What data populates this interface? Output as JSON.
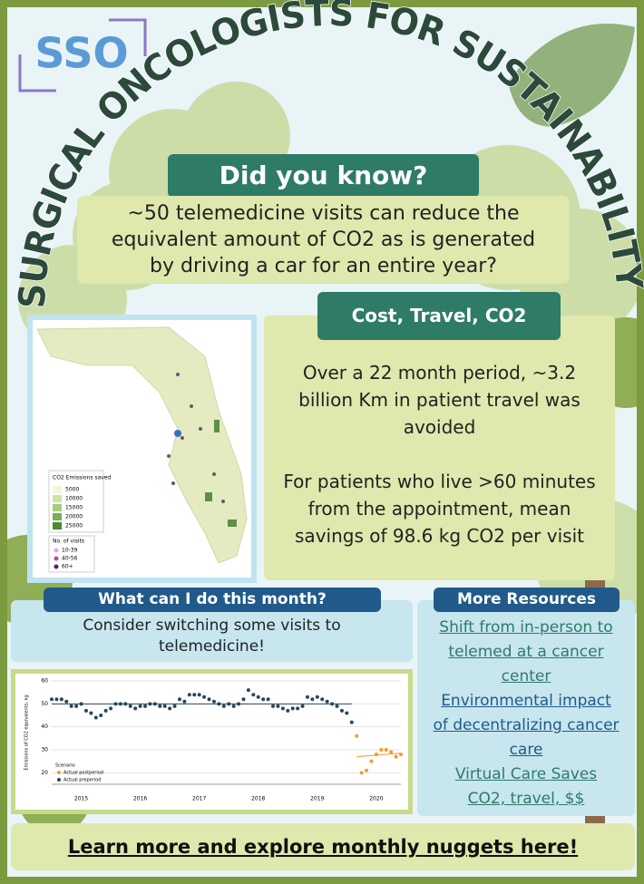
{
  "logo": "SSO",
  "title": "SURGICAL ONCOLOGISTS FOR SUSTAINABILITY",
  "did_you_know": {
    "heading": "Did you know?",
    "lines": [
      "~50 telemedicine visits can reduce the",
      "equivalent amount of CO2 as is generated",
      "by driving a car for an entire year?"
    ]
  },
  "map": {
    "legend_title": "CO2 Emissions saved",
    "scale": [
      5000,
      10000,
      15000,
      20000,
      25000
    ],
    "visits_title": "No. of visits",
    "visits": [
      "10-39",
      "40-56",
      "60+"
    ]
  },
  "cost_travel": {
    "heading": "Cost, Travel, CO2",
    "paragraphs": [
      [
        "Over a 22 month period, ~3.2",
        "billion Km in patient travel was",
        "avoided"
      ],
      [
        "For patients who live >60 minutes",
        "from the appointment, mean",
        "savings of 98.6 kg CO2 per visit"
      ]
    ]
  },
  "this_month": {
    "heading": "What can I do this month?",
    "lines": [
      "Consider switching some visits to",
      "telemedicine!"
    ]
  },
  "trend_chart": {
    "y_label": "Emissions of CO2 equivalents, kg",
    "ylim": [
      15,
      60
    ],
    "yticks": [
      20,
      30,
      40,
      50,
      60
    ],
    "xlim": [
      "2015-01",
      "2020-12"
    ],
    "years": [
      2015,
      2016,
      2017,
      2018,
      2019,
      2020
    ],
    "legend_title": "Scenario",
    "series": [
      {
        "name": "Actual postperiod",
        "color": "#f39a2b",
        "x": [
          "2020-03",
          "2020-04",
          "2020-05",
          "2020-06",
          "2020-07",
          "2020-08",
          "2020-09",
          "2020-10",
          "2020-11",
          "2020-12"
        ],
        "values": [
          36,
          20,
          21,
          25,
          28,
          30,
          30,
          29,
          27,
          28
        ],
        "trend": [
          27,
          28.5
        ]
      },
      {
        "name": "Actual preperiod",
        "color": "#27485c",
        "x": [
          "2015-01",
          "2015-02",
          "2015-03",
          "2015-04",
          "2015-05",
          "2015-06",
          "2015-07",
          "2015-08",
          "2015-09",
          "2015-10",
          "2015-11",
          "2015-12",
          "2016-01",
          "2016-02",
          "2016-03",
          "2016-04",
          "2016-05",
          "2016-06",
          "2016-07",
          "2016-08",
          "2016-09",
          "2016-10",
          "2016-11",
          "2016-12",
          "2017-01",
          "2017-02",
          "2017-03",
          "2017-04",
          "2017-05",
          "2017-06",
          "2017-07",
          "2017-08",
          "2017-09",
          "2017-10",
          "2017-11",
          "2017-12",
          "2018-01",
          "2018-02",
          "2018-03",
          "2018-04",
          "2018-05",
          "2018-06",
          "2018-07",
          "2018-08",
          "2018-09",
          "2018-10",
          "2018-11",
          "2018-12",
          "2019-01",
          "2019-02",
          "2019-03",
          "2019-04",
          "2019-05",
          "2019-06",
          "2019-07",
          "2019-08",
          "2019-09",
          "2019-10",
          "2019-11",
          "2019-12",
          "2020-01",
          "2020-02"
        ],
        "values": [
          52,
          52,
          52,
          51,
          49,
          49,
          50,
          47,
          46,
          44,
          45,
          47,
          48,
          50,
          50,
          50,
          49,
          48,
          49,
          49,
          50,
          50,
          49,
          49,
          48,
          49,
          52,
          51,
          54,
          54,
          54,
          53,
          52,
          51,
          50,
          49,
          50,
          49,
          50,
          52,
          56,
          54,
          53,
          52,
          52,
          49,
          49,
          48,
          47,
          48,
          48,
          49,
          53,
          52,
          53,
          52,
          51,
          50,
          49,
          47,
          46,
          42
        ],
        "trend": [
          50,
          50
        ]
      }
    ]
  },
  "resources": {
    "heading": "More Resources",
    "links": [
      {
        "lines": [
          "Shift from in-person to",
          "telemed at a cancer",
          "center"
        ]
      },
      {
        "lines": [
          "Environmental impact",
          "of decentralizing cancer",
          "care"
        ]
      },
      {
        "lines": [
          "Virtual Care Saves",
          "CO2, travel, $$"
        ]
      }
    ]
  },
  "footer": "Learn more and explore monthly nuggets here!"
}
